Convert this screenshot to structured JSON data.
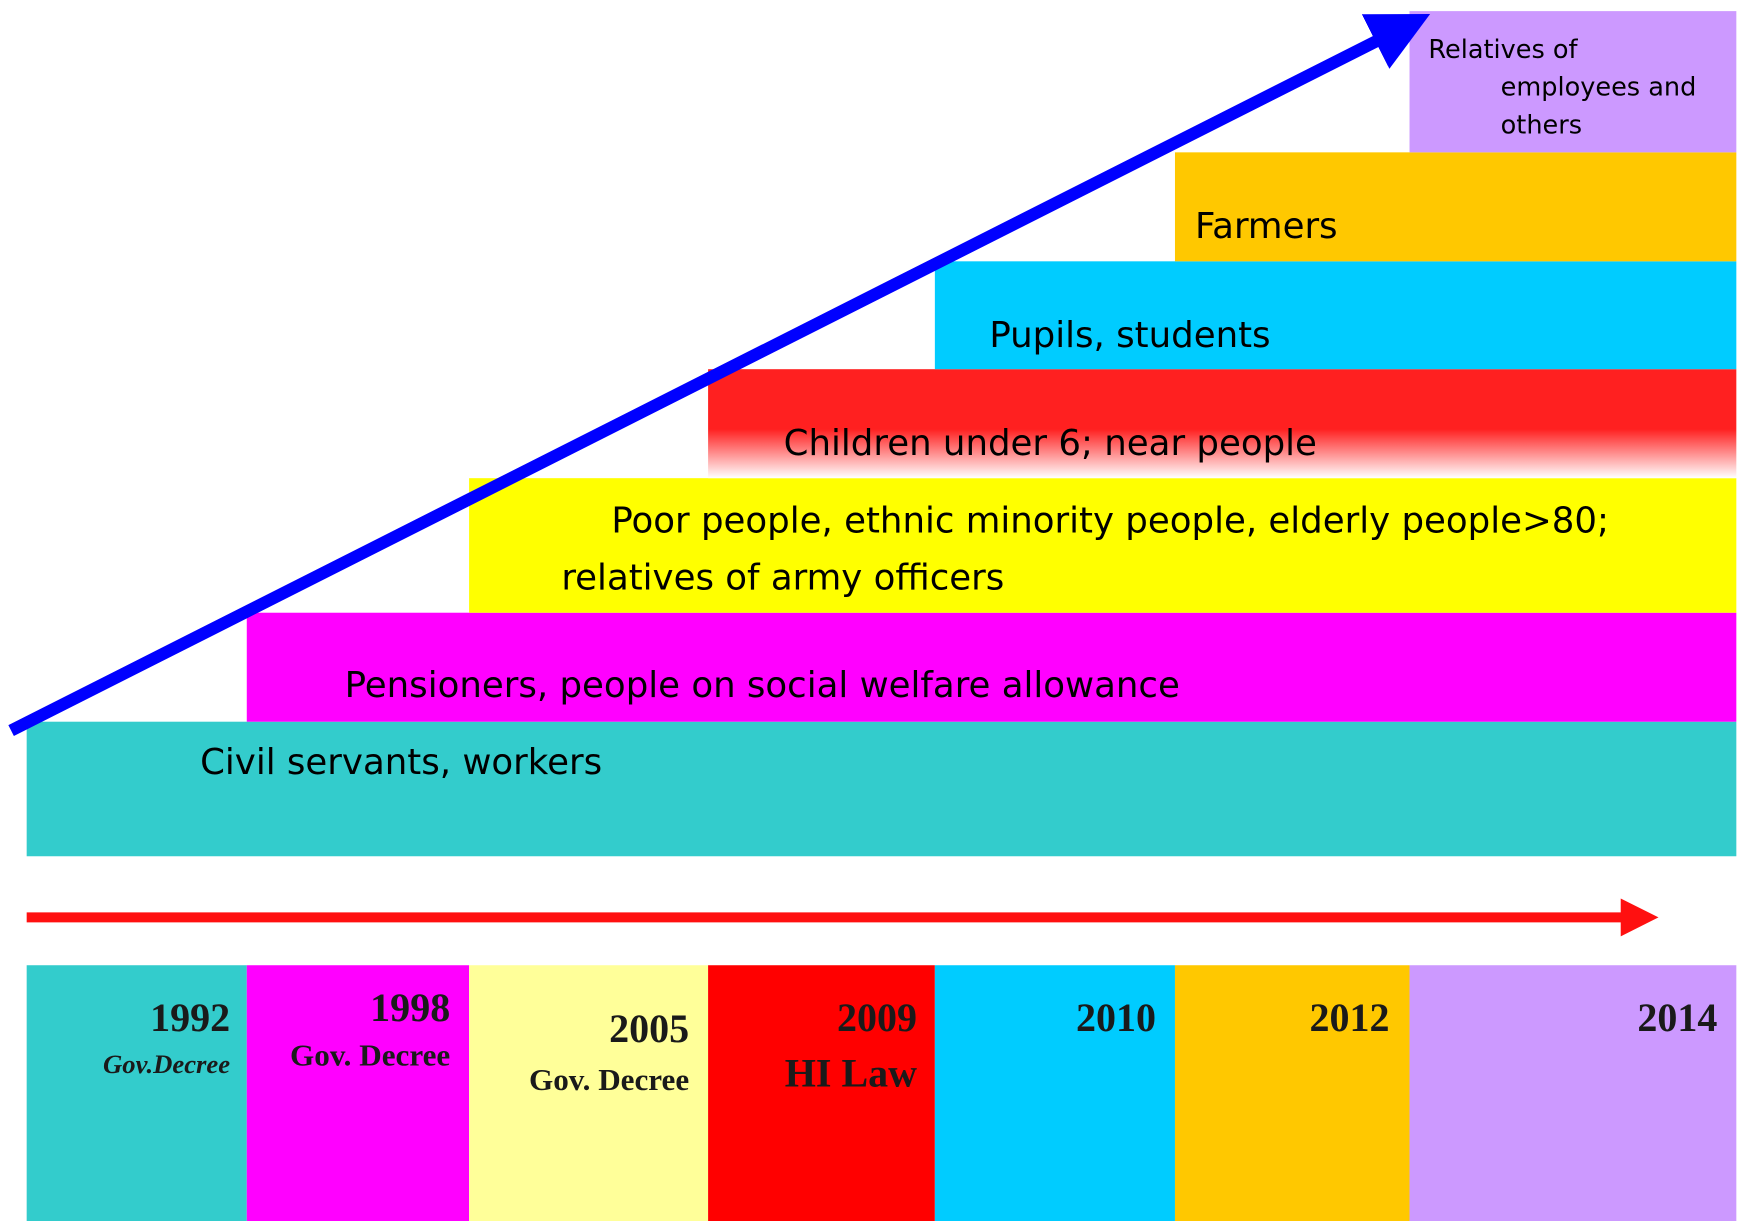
{
  "layers": [
    {
      "lines": [
        "Civil servants, workers"
      ]
    },
    {
      "lines": [
        "Pensioners, people on social welfare allowance"
      ]
    },
    {
      "lines": [
        "Poor  people, ethnic minority people, elderly people>80;",
        "relatives of army officers"
      ]
    },
    {
      "lines": [
        "Children under 6; near people"
      ]
    },
    {
      "lines": [
        "Pupils, students"
      ]
    },
    {
      "lines": [
        "Farmers"
      ]
    },
    {
      "lines": [
        "Relatives of",
        "employees and",
        "others"
      ]
    }
  ],
  "timeline": [
    {
      "year": "1992",
      "note": "Gov.Decree"
    },
    {
      "year": "1998",
      "note": "Gov. Decree"
    },
    {
      "year": "2005",
      "note": "Gov. Decree"
    },
    {
      "year": "2009",
      "note": "HI Law"
    },
    {
      "year": "2010"
    },
    {
      "year": "2012"
    },
    {
      "year": "2014"
    }
  ]
}
